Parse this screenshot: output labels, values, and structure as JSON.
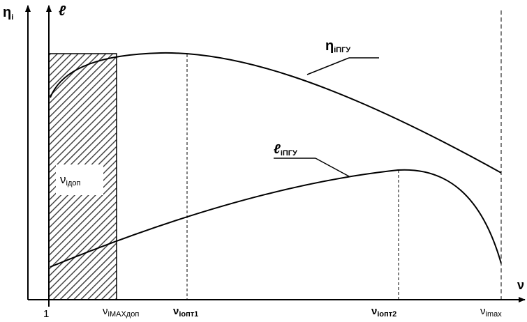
{
  "axes": {
    "y_left": {
      "symbol": "η",
      "sub": "i"
    },
    "y_right": {
      "symbol": "ℓ"
    },
    "x": {
      "symbol": "ν"
    }
  },
  "x_labels": [
    {
      "symbol": "1"
    },
    {
      "symbol": "ν",
      "sub": "iMAXдоп"
    },
    {
      "symbol": "ν",
      "sub": "iопт1"
    },
    {
      "symbol": "ν",
      "sub": "iопт2"
    },
    {
      "symbol": "ν",
      "sub": "imax"
    }
  ],
  "zone_label": {
    "symbol": "ν",
    "sub": "iдоп"
  },
  "curves": [
    {
      "symbol": "η",
      "sub": "iПГУ"
    },
    {
      "symbol": "ℓ",
      "sub": "iПГУ"
    }
  ]
}
